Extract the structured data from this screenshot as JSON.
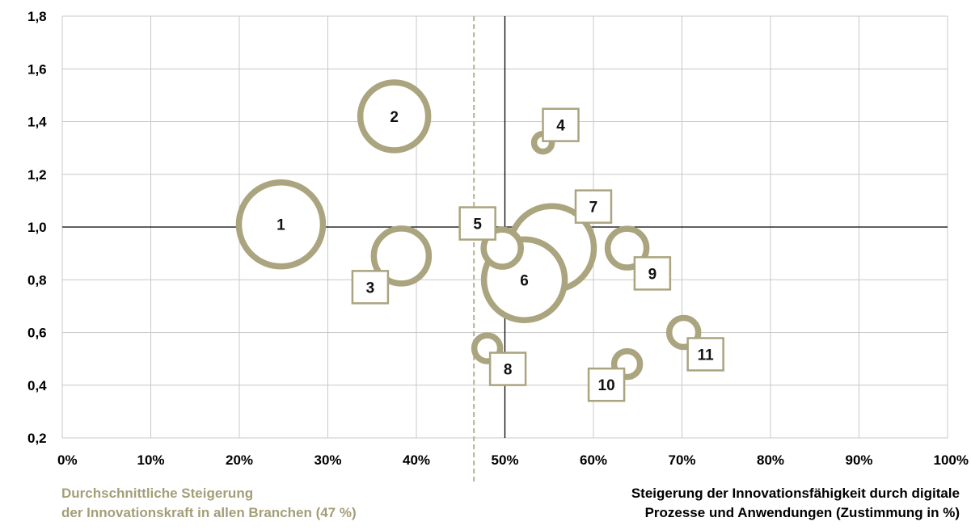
{
  "chart_data": {
    "type": "scatter",
    "bubble": true,
    "x_ticks": [
      "0%",
      "10%",
      "20%",
      "30%",
      "40%",
      "50%",
      "60%",
      "70%",
      "80%",
      "90%",
      "100%"
    ],
    "y_ticks": [
      "0,2",
      "0,4",
      "0,6",
      "0,8",
      "1,0",
      "1,2",
      "1,4",
      "1,6",
      "1,8"
    ],
    "xlim": [
      0,
      100
    ],
    "ylim": [
      0.2,
      1.8
    ],
    "grid": true,
    "reference_lines": {
      "horizontal_y": 1.0,
      "vertical_x": 50,
      "average_x": 46.5
    },
    "xlabel_lines": [
      "Steigerung der Innovationsfähigkeit durch digitale",
      "Prozesse und Anwendungen (Zustimmung in %)"
    ],
    "average_note_lines": [
      "Durchschnittliche Steigerung",
      "der Innovationskraft in allen Branchen (47 %)"
    ],
    "bubble_color": "#aaa47f",
    "points": [
      {
        "label": "1",
        "x": 24.7,
        "y": 1.01,
        "size": 52,
        "label_pos": "center"
      },
      {
        "label": "2",
        "x": 37.5,
        "y": 1.42,
        "size": 42,
        "label_pos": "center"
      },
      {
        "label": "3",
        "x": 38.3,
        "y": 0.89,
        "size": 34,
        "label_pos": "box-bottom-left"
      },
      {
        "label": "4",
        "x": 54.3,
        "y": 1.32,
        "size": 11,
        "label_pos": "box-top-right"
      },
      {
        "label": "5",
        "x": 49.7,
        "y": 0.92,
        "size": 23,
        "label_pos": "box-top-left"
      },
      {
        "label": "6",
        "x": 52.2,
        "y": 0.8,
        "size": 50,
        "label_pos": "center"
      },
      {
        "label": "7",
        "x": 55.3,
        "y": 0.92,
        "size": 52,
        "label_pos": "box-top-right"
      },
      {
        "label": "8",
        "x": 48.0,
        "y": 0.54,
        "size": 16,
        "label_pos": "box-bottom-right"
      },
      {
        "label": "9",
        "x": 63.8,
        "y": 0.92,
        "size": 24,
        "label_pos": "box-bottom-right"
      },
      {
        "label": "10",
        "x": 63.8,
        "y": 0.48,
        "size": 16,
        "label_pos": "box-bottom-left"
      },
      {
        "label": "11",
        "x": 70.2,
        "y": 0.6,
        "size": 18,
        "label_pos": "box-bottom-right"
      }
    ]
  }
}
